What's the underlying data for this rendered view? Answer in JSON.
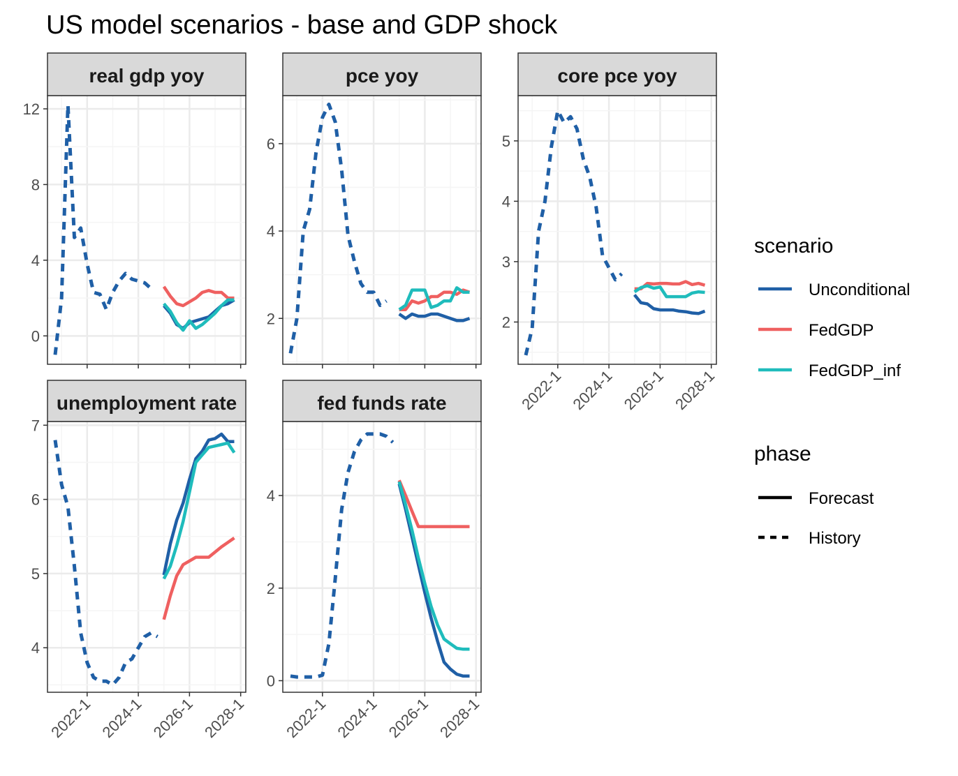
{
  "title": "US model scenarios - base and GDP shock",
  "colors": {
    "Unconditional": "#1f5fa6",
    "FedGDP": "#ef6060",
    "FedGDP_inf": "#1fbcbc",
    "panel_border": "#333333",
    "strip_fill": "#d9d9d9",
    "grid_major": "#ebebeb",
    "grid_minor": "#f5f5f5"
  },
  "legend": {
    "scenario_title": "scenario",
    "scenario_items": [
      "Unconditional",
      "FedGDP",
      "FedGDP_inf"
    ],
    "phase_title": "phase",
    "phase_items": [
      {
        "label": "Forecast",
        "dash": "solid"
      },
      {
        "label": "History",
        "dash": "dashed"
      }
    ]
  },
  "chart_data": [
    {
      "type": "line",
      "title": "real gdp yoy",
      "x_ticks": [
        "2022-1",
        "2024-1",
        "2026-1",
        "2028-1"
      ],
      "y_ticks": [
        0,
        4,
        8,
        12
      ],
      "xlim": [
        2020.45,
        2028.2
      ],
      "ylim": [
        -1.5,
        12.7
      ],
      "history": {
        "x": [
          2020.75,
          2021.0,
          2021.25,
          2021.5,
          2021.75,
          2022.0,
          2022.25,
          2022.5,
          2022.75,
          2023.0,
          2023.25,
          2023.5,
          2023.75,
          2024.0,
          2024.25,
          2024.5
        ],
        "values": [
          -1.0,
          2.0,
          12.2,
          5.2,
          5.7,
          3.8,
          2.3,
          2.2,
          1.4,
          2.3,
          2.9,
          3.3,
          3.0,
          2.9,
          2.8,
          2.5
        ]
      },
      "series": [
        {
          "name": "Unconditional",
          "x": [
            2025.0,
            2025.25,
            2025.5,
            2025.75,
            2026.0,
            2026.25,
            2026.5,
            2026.75,
            2027.0,
            2027.25,
            2027.5,
            2027.75
          ],
          "values": [
            1.6,
            1.2,
            0.6,
            0.4,
            0.7,
            0.8,
            0.9,
            1.0,
            1.3,
            1.6,
            1.7,
            1.9
          ]
        },
        {
          "name": "FedGDP",
          "x": [
            2025.0,
            2025.25,
            2025.5,
            2025.75,
            2026.0,
            2026.25,
            2026.5,
            2026.75,
            2027.0,
            2027.25,
            2027.5,
            2027.75
          ],
          "values": [
            2.6,
            2.1,
            1.7,
            1.6,
            1.8,
            2.0,
            2.3,
            2.4,
            2.3,
            2.3,
            2.0,
            2.0
          ]
        },
        {
          "name": "FedGDP_inf",
          "x": [
            2025.0,
            2025.25,
            2025.5,
            2025.75,
            2026.0,
            2026.25,
            2026.5,
            2026.75,
            2027.0,
            2027.25,
            2027.5,
            2027.75
          ],
          "values": [
            1.7,
            1.3,
            0.7,
            0.3,
            0.8,
            0.4,
            0.6,
            0.9,
            1.2,
            1.6,
            1.9,
            1.9
          ]
        }
      ]
    },
    {
      "type": "line",
      "title": "pce yoy",
      "x_ticks": [
        "2022-1",
        "2024-1",
        "2026-1",
        "2028-1"
      ],
      "y_ticks": [
        2,
        4,
        6
      ],
      "xlim": [
        2020.45,
        2028.2
      ],
      "ylim": [
        0.95,
        7.1
      ],
      "history": {
        "x": [
          2020.75,
          2021.0,
          2021.25,
          2021.5,
          2021.75,
          2022.0,
          2022.25,
          2022.5,
          2022.75,
          2023.0,
          2023.25,
          2023.5,
          2023.75,
          2024.0,
          2024.25,
          2024.5
        ],
        "values": [
          1.2,
          2.0,
          4.0,
          4.5,
          5.8,
          6.6,
          6.9,
          6.5,
          5.4,
          3.9,
          3.3,
          2.8,
          2.6,
          2.6,
          2.3,
          2.4
        ]
      },
      "series": [
        {
          "name": "Unconditional",
          "x": [
            2025.0,
            2025.25,
            2025.5,
            2025.75,
            2026.0,
            2026.25,
            2026.5,
            2026.75,
            2027.0,
            2027.25,
            2027.5,
            2027.75
          ],
          "values": [
            2.1,
            2.0,
            2.1,
            2.05,
            2.05,
            2.1,
            2.1,
            2.05,
            2.0,
            1.95,
            1.95,
            2.0
          ]
        },
        {
          "name": "FedGDP",
          "x": [
            2025.0,
            2025.25,
            2025.5,
            2025.75,
            2026.0,
            2026.25,
            2026.5,
            2026.75,
            2027.0,
            2027.25,
            2027.5,
            2027.75
          ],
          "values": [
            2.2,
            2.2,
            2.4,
            2.35,
            2.4,
            2.5,
            2.5,
            2.6,
            2.6,
            2.55,
            2.65,
            2.6
          ]
        },
        {
          "name": "FedGDP_inf",
          "x": [
            2025.0,
            2025.25,
            2025.5,
            2025.75,
            2026.0,
            2026.25,
            2026.5,
            2026.75,
            2027.0,
            2027.25,
            2027.5,
            2027.75
          ],
          "values": [
            2.2,
            2.3,
            2.65,
            2.65,
            2.65,
            2.25,
            2.3,
            2.4,
            2.4,
            2.7,
            2.6,
            2.6
          ]
        }
      ]
    },
    {
      "type": "line",
      "title": "core pce yoy",
      "x_ticks": [
        "2022-1",
        "2024-1",
        "2026-1",
        "2028-1"
      ],
      "y_ticks": [
        2,
        3,
        4,
        5
      ],
      "xlim": [
        2020.45,
        2028.2
      ],
      "ylim": [
        1.3,
        5.75
      ],
      "history": {
        "x": [
          2020.75,
          2021.0,
          2021.25,
          2021.5,
          2021.75,
          2022.0,
          2022.25,
          2022.5,
          2022.75,
          2023.0,
          2023.25,
          2023.5,
          2023.75,
          2024.0,
          2024.25,
          2024.5
        ],
        "values": [
          1.45,
          1.9,
          3.5,
          4.0,
          4.9,
          5.5,
          5.3,
          5.4,
          5.2,
          4.7,
          4.4,
          3.9,
          3.1,
          2.9,
          2.7,
          2.8
        ]
      },
      "series": [
        {
          "name": "Unconditional",
          "x": [
            2025.0,
            2025.25,
            2025.5,
            2025.75,
            2026.0,
            2026.25,
            2026.5,
            2026.75,
            2027.0,
            2027.25,
            2027.5,
            2027.75
          ],
          "values": [
            2.45,
            2.32,
            2.3,
            2.22,
            2.2,
            2.2,
            2.2,
            2.18,
            2.17,
            2.15,
            2.14,
            2.18
          ]
        },
        {
          "name": "FedGDP",
          "x": [
            2025.0,
            2025.25,
            2025.5,
            2025.75,
            2026.0,
            2026.25,
            2026.5,
            2026.75,
            2027.0,
            2027.25,
            2027.5,
            2027.75
          ],
          "values": [
            2.55,
            2.55,
            2.64,
            2.63,
            2.64,
            2.64,
            2.63,
            2.63,
            2.67,
            2.62,
            2.64,
            2.61
          ]
        },
        {
          "name": "FedGDP_inf",
          "x": [
            2025.0,
            2025.25,
            2025.5,
            2025.75,
            2026.0,
            2026.25,
            2026.5,
            2026.75,
            2027.0,
            2027.25,
            2027.5,
            2027.75
          ],
          "values": [
            2.5,
            2.57,
            2.6,
            2.56,
            2.58,
            2.42,
            2.42,
            2.42,
            2.42,
            2.48,
            2.5,
            2.49
          ]
        }
      ]
    },
    {
      "type": "line",
      "title": "unemployment rate",
      "x_ticks": [
        "2022-1",
        "2024-1",
        "2026-1",
        "2028-1"
      ],
      "y_ticks": [
        4,
        5,
        6,
        7
      ],
      "xlim": [
        2020.45,
        2028.2
      ],
      "ylim": [
        3.4,
        7.05
      ],
      "history": {
        "x": [
          2020.75,
          2021.0,
          2021.25,
          2021.5,
          2021.75,
          2022.0,
          2022.25,
          2022.5,
          2022.75,
          2023.0,
          2023.25,
          2023.5,
          2023.75,
          2024.0,
          2024.25,
          2024.5,
          2024.75
        ],
        "values": [
          6.8,
          6.2,
          5.9,
          5.1,
          4.2,
          3.8,
          3.6,
          3.55,
          3.55,
          3.5,
          3.6,
          3.8,
          3.85,
          4.0,
          4.15,
          4.2,
          4.15
        ]
      },
      "series": [
        {
          "name": "Unconditional",
          "x": [
            2025.0,
            2025.25,
            2025.5,
            2025.75,
            2026.0,
            2026.25,
            2026.5,
            2026.75,
            2027.0,
            2027.25,
            2027.5,
            2027.75
          ],
          "values": [
            4.98,
            5.4,
            5.72,
            5.95,
            6.27,
            6.55,
            6.65,
            6.8,
            6.82,
            6.88,
            6.78,
            6.78
          ]
        },
        {
          "name": "FedGDP",
          "x": [
            2025.0,
            2025.25,
            2025.5,
            2025.75,
            2026.0,
            2026.25,
            2026.5,
            2026.75,
            2027.0,
            2027.25,
            2027.5,
            2027.75
          ],
          "values": [
            4.38,
            4.7,
            4.97,
            5.12,
            5.17,
            5.22,
            5.22,
            5.22,
            5.29,
            5.36,
            5.42,
            5.48
          ]
        },
        {
          "name": "FedGDP_inf",
          "x": [
            2025.0,
            2025.25,
            2025.5,
            2025.75,
            2026.0,
            2026.25,
            2026.5,
            2026.75,
            2027.0,
            2027.25,
            2027.5,
            2027.75
          ],
          "values": [
            4.93,
            5.1,
            5.38,
            5.7,
            6.1,
            6.5,
            6.6,
            6.7,
            6.72,
            6.74,
            6.76,
            6.63
          ]
        }
      ]
    },
    {
      "type": "line",
      "title": "fed funds rate",
      "x_ticks": [
        "2022-1",
        "2024-1",
        "2026-1",
        "2028-1"
      ],
      "y_ticks": [
        0,
        2,
        4
      ],
      "xlim": [
        2020.45,
        2028.2
      ],
      "ylim": [
        -0.25,
        5.6
      ],
      "history": {
        "x": [
          2020.75,
          2021.0,
          2021.25,
          2021.5,
          2021.75,
          2022.0,
          2022.25,
          2022.5,
          2022.75,
          2023.0,
          2023.25,
          2023.5,
          2023.75,
          2024.0,
          2024.25,
          2024.5,
          2024.75
        ],
        "values": [
          0.1,
          0.08,
          0.08,
          0.08,
          0.08,
          0.12,
          0.8,
          2.2,
          3.7,
          4.5,
          4.95,
          5.2,
          5.33,
          5.33,
          5.33,
          5.28,
          5.15
        ]
      },
      "series": [
        {
          "name": "Unconditional",
          "x": [
            2025.0,
            2025.25,
            2025.5,
            2025.75,
            2026.0,
            2026.25,
            2026.5,
            2026.75,
            2027.0,
            2027.25,
            2027.5,
            2027.75
          ],
          "values": [
            4.25,
            3.7,
            3.1,
            2.5,
            1.9,
            1.35,
            0.85,
            0.4,
            0.25,
            0.14,
            0.1,
            0.1
          ]
        },
        {
          "name": "FedGDP",
          "x": [
            2025.0,
            2025.25,
            2025.5,
            2025.75,
            2026.0,
            2026.25,
            2026.5,
            2026.75,
            2027.0,
            2027.25,
            2027.5,
            2027.75
          ],
          "values": [
            4.33,
            4.0,
            3.66,
            3.33,
            3.33,
            3.33,
            3.33,
            3.33,
            3.33,
            3.33,
            3.33,
            3.33
          ]
        },
        {
          "name": "FedGDP_inf",
          "x": [
            2025.0,
            2025.25,
            2025.5,
            2025.75,
            2026.0,
            2026.25,
            2026.5,
            2026.75,
            2027.0,
            2027.25,
            2027.5,
            2027.75
          ],
          "values": [
            4.3,
            3.8,
            3.25,
            2.65,
            2.1,
            1.6,
            1.2,
            0.9,
            0.8,
            0.7,
            0.68,
            0.68
          ]
        }
      ]
    }
  ]
}
